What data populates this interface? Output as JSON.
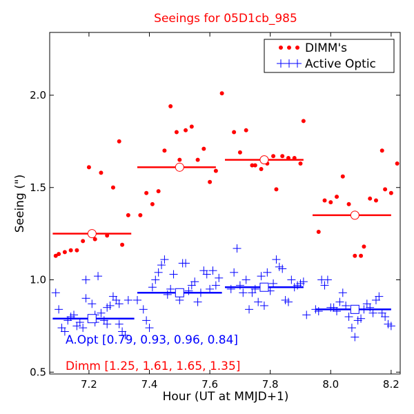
{
  "chart_data": {
    "type": "scatter",
    "title": "Seeings for 05D1cb_985",
    "xlabel": "Hour (UT at MMJD+1)",
    "ylabel": "Seeing (\")",
    "xlim": [
      7.07,
      8.23
    ],
    "ylim": [
      0.49,
      2.34
    ],
    "xticks": [
      7.2,
      7.4,
      7.6,
      7.8,
      8.0,
      8.2
    ],
    "xtick_labels": [
      "7.2",
      "7.4",
      "7.6",
      "7.8",
      "8.0",
      "8.2"
    ],
    "yticks": [
      0.5,
      1.0,
      1.5,
      2.0
    ],
    "ytick_labels": [
      "0.5",
      "1.0",
      "1.5",
      "2.0"
    ],
    "legend": {
      "position": "top-right",
      "entries": [
        {
          "label": "DIMM's",
          "color": "#ff0000",
          "marker": "dot"
        },
        {
          "label": "Active Optic",
          "color": "#0000ff",
          "marker": "plus"
        }
      ]
    },
    "annotations": [
      {
        "text": "A.Opt [0.79, 0.93, 0.96, 0.84]",
        "color": "#0000ff"
      },
      {
        "text": "Dimm [1.25, 1.61, 1.65, 1.35]",
        "color": "#ff0000"
      }
    ],
    "series": [
      {
        "name": "DIMM's",
        "color": "#ff0000",
        "points": [
          [
            7.09,
            1.13
          ],
          [
            7.1,
            1.14
          ],
          [
            7.12,
            1.15
          ],
          [
            7.14,
            1.16
          ],
          [
            7.16,
            1.16
          ],
          [
            7.18,
            1.21
          ],
          [
            7.2,
            1.61
          ],
          [
            7.22,
            1.22
          ],
          [
            7.24,
            1.58
          ],
          [
            7.26,
            1.24
          ],
          [
            7.28,
            1.5
          ],
          [
            7.3,
            1.75
          ],
          [
            7.31,
            1.19
          ],
          [
            7.33,
            1.35
          ],
          [
            7.37,
            1.35
          ],
          [
            7.39,
            1.47
          ],
          [
            7.41,
            1.41
          ],
          [
            7.43,
            1.48
          ],
          [
            7.45,
            1.7
          ],
          [
            7.47,
            1.94
          ],
          [
            7.49,
            1.8
          ],
          [
            7.5,
            1.65
          ],
          [
            7.52,
            1.81
          ],
          [
            7.54,
            1.83
          ],
          [
            7.56,
            1.65
          ],
          [
            7.58,
            1.71
          ],
          [
            7.6,
            1.53
          ],
          [
            7.62,
            1.59
          ],
          [
            7.64,
            2.01
          ],
          [
            7.68,
            1.8
          ],
          [
            7.7,
            1.69
          ],
          [
            7.72,
            1.81
          ],
          [
            7.74,
            1.62
          ],
          [
            7.75,
            1.62
          ],
          [
            7.77,
            1.6
          ],
          [
            7.79,
            1.63
          ],
          [
            7.81,
            1.67
          ],
          [
            7.82,
            1.49
          ],
          [
            7.84,
            1.67
          ],
          [
            7.86,
            1.66
          ],
          [
            7.88,
            1.66
          ],
          [
            7.9,
            1.63
          ],
          [
            7.91,
            1.86
          ],
          [
            7.96,
            1.26
          ],
          [
            7.98,
            1.43
          ],
          [
            8.0,
            1.42
          ],
          [
            8.02,
            1.45
          ],
          [
            8.04,
            1.56
          ],
          [
            8.06,
            1.41
          ],
          [
            8.08,
            1.13
          ],
          [
            8.1,
            1.13
          ],
          [
            8.11,
            1.18
          ],
          [
            8.13,
            1.44
          ],
          [
            8.15,
            1.43
          ],
          [
            8.17,
            1.7
          ],
          [
            8.18,
            1.49
          ],
          [
            8.2,
            1.47
          ],
          [
            8.22,
            1.63
          ]
        ]
      },
      {
        "name": "Active Optic",
        "color": "#0000ff",
        "points": [
          [
            7.09,
            0.93
          ],
          [
            7.1,
            0.84
          ],
          [
            7.11,
            0.74
          ],
          [
            7.12,
            0.72
          ],
          [
            7.13,
            0.78
          ],
          [
            7.14,
            0.8
          ],
          [
            7.15,
            0.81
          ],
          [
            7.16,
            0.75
          ],
          [
            7.17,
            0.77
          ],
          [
            7.18,
            0.74
          ],
          [
            7.19,
            0.9
          ],
          [
            7.19,
            1.0
          ],
          [
            7.2,
            0.79
          ],
          [
            7.21,
            0.87
          ],
          [
            7.22,
            0.81
          ],
          [
            7.23,
            1.02
          ],
          [
            7.24,
            0.82
          ],
          [
            7.25,
            0.78
          ],
          [
            7.26,
            0.76
          ],
          [
            7.27,
            0.86
          ],
          [
            7.28,
            0.91
          ],
          [
            7.29,
            0.89
          ],
          [
            7.3,
            0.76
          ],
          [
            7.31,
            0.72
          ],
          [
            7.32,
            0.7
          ],
          [
            7.33,
            0.89
          ],
          [
            7.22,
            0.77
          ],
          [
            7.26,
            0.85
          ],
          [
            7.3,
            0.87
          ],
          [
            7.36,
            0.89
          ],
          [
            7.38,
            0.84
          ],
          [
            7.39,
            0.78
          ],
          [
            7.4,
            0.74
          ],
          [
            7.41,
            0.96
          ],
          [
            7.42,
            1.0
          ],
          [
            7.43,
            1.04
          ],
          [
            7.44,
            1.08
          ],
          [
            7.45,
            1.11
          ],
          [
            7.46,
            0.92
          ],
          [
            7.47,
            0.95
          ],
          [
            7.48,
            1.03
          ],
          [
            7.49,
            0.93
          ],
          [
            7.5,
            0.89
          ],
          [
            7.51,
            1.09
          ],
          [
            7.52,
            1.09
          ],
          [
            7.53,
            0.94
          ],
          [
            7.54,
            0.97
          ],
          [
            7.55,
            0.99
          ],
          [
            7.56,
            0.88
          ],
          [
            7.57,
            0.93
          ],
          [
            7.58,
            1.05
          ],
          [
            7.59,
            1.03
          ],
          [
            7.6,
            0.95
          ],
          [
            7.61,
            1.05
          ],
          [
            7.62,
            0.97
          ],
          [
            7.63,
            1.01
          ],
          [
            7.67,
            0.95
          ],
          [
            7.68,
            1.04
          ],
          [
            7.69,
            1.17
          ],
          [
            7.7,
            0.97
          ],
          [
            7.71,
            0.93
          ],
          [
            7.72,
            1.0
          ],
          [
            7.73,
            0.84
          ],
          [
            7.74,
            0.93
          ],
          [
            7.75,
            0.95
          ],
          [
            7.76,
            0.88
          ],
          [
            7.77,
            1.02
          ],
          [
            7.78,
            0.86
          ],
          [
            7.79,
            1.04
          ],
          [
            7.8,
            0.94
          ],
          [
            7.81,
            0.98
          ],
          [
            7.82,
            1.11
          ],
          [
            7.83,
            1.07
          ],
          [
            7.84,
            1.06
          ],
          [
            7.85,
            0.89
          ],
          [
            7.86,
            0.88
          ],
          [
            7.87,
            1.0
          ],
          [
            7.88,
            0.96
          ],
          [
            7.89,
            0.97
          ],
          [
            7.9,
            0.98
          ],
          [
            7.91,
            0.99
          ],
          [
            7.92,
            0.81
          ],
          [
            7.95,
            0.84
          ],
          [
            7.96,
            0.83
          ],
          [
            7.97,
            1.0
          ],
          [
            7.98,
            0.97
          ],
          [
            7.99,
            1.0
          ],
          [
            8.0,
            0.85
          ],
          [
            8.01,
            0.85
          ],
          [
            8.02,
            0.83
          ],
          [
            8.03,
            0.88
          ],
          [
            8.04,
            0.93
          ],
          [
            8.05,
            0.86
          ],
          [
            8.06,
            0.8
          ],
          [
            8.07,
            0.74
          ],
          [
            8.08,
            0.69
          ],
          [
            8.09,
            0.78
          ],
          [
            8.1,
            0.79
          ],
          [
            8.11,
            0.84
          ],
          [
            8.12,
            0.87
          ],
          [
            8.13,
            0.85
          ],
          [
            8.14,
            0.82
          ],
          [
            8.15,
            0.89
          ],
          [
            8.16,
            0.91
          ],
          [
            8.17,
            0.82
          ],
          [
            8.18,
            0.8
          ],
          [
            8.19,
            0.76
          ],
          [
            8.2,
            0.75
          ]
        ]
      }
    ],
    "medians": [
      {
        "series": "Active Optic",
        "color": "#0000ff",
        "segments": [
          {
            "x0": 7.08,
            "x1": 7.35,
            "y": 0.79,
            "xc": 7.21
          },
          {
            "x0": 7.36,
            "x1": 7.64,
            "y": 0.93,
            "xc": 7.5
          },
          {
            "x0": 7.65,
            "x1": 7.91,
            "y": 0.96,
            "xc": 7.78
          },
          {
            "x0": 7.95,
            "x1": 8.2,
            "y": 0.84,
            "xc": 8.08
          }
        ]
      },
      {
        "series": "DIMM's",
        "color": "#ff0000",
        "segments": [
          {
            "x0": 7.08,
            "x1": 7.34,
            "y": 1.25,
            "xc": 7.21
          },
          {
            "x0": 7.36,
            "x1": 7.62,
            "y": 1.61,
            "xc": 7.5
          },
          {
            "x0": 7.65,
            "x1": 7.91,
            "y": 1.65,
            "xc": 7.78
          },
          {
            "x0": 7.94,
            "x1": 8.2,
            "y": 1.35,
            "xc": 8.08
          }
        ]
      }
    ]
  }
}
